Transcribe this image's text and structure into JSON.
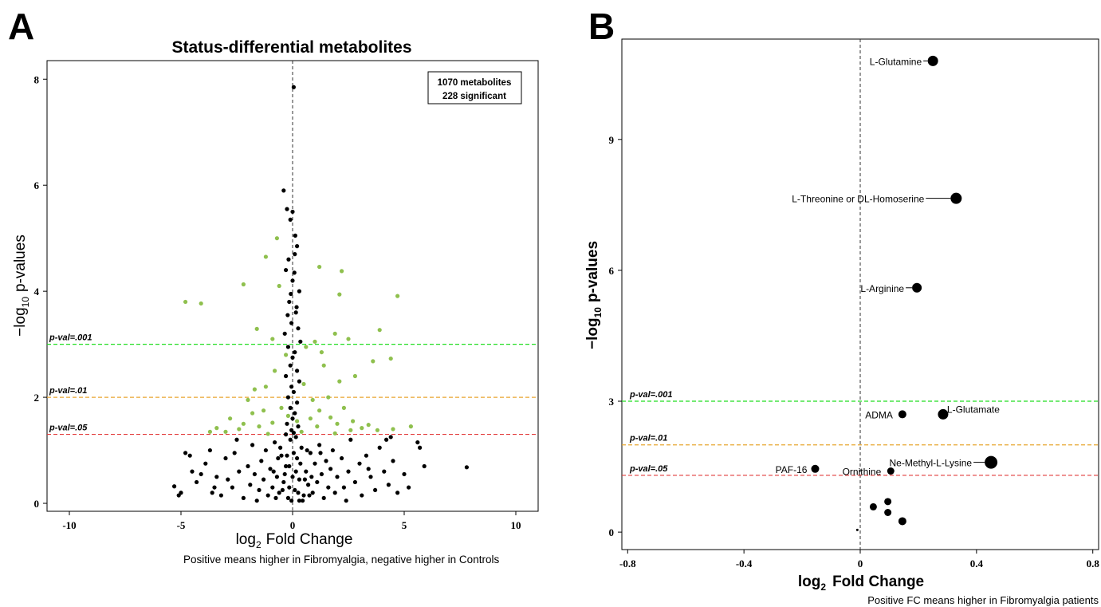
{
  "panels": {
    "a_letter": "A",
    "b_letter": "B"
  },
  "notes": {
    "a": "Positive means higher in Fibromyalgia, negative higher in Controls",
    "b": "Positive FC means higher in Fibromyalgia patients"
  },
  "colors": {
    "nonsignificant": "#000000",
    "significant": "#8fc04e",
    "line_001": "#22dd22",
    "line_01": "#e8a630",
    "line_05": "#e23c3c"
  },
  "chart_data": [
    {
      "type": "scatter",
      "title": "Status-differential metabolites",
      "xlabel": {
        "main": "log",
        "sub": "2",
        "rest": "Fold Change"
      },
      "ylabel": {
        "main": "−log",
        "sub": "10",
        "rest": "p-values"
      },
      "xlim": [
        -11,
        11
      ],
      "ylim": [
        -0.15,
        8.35
      ],
      "xticks": [
        "-10",
        "-5",
        "0",
        "5",
        "10"
      ],
      "yticks": [
        "0",
        "2",
        "4",
        "6",
        "8"
      ],
      "legend": {
        "line1": "1070 metabolites",
        "line2": "228 significant",
        "position": "top-right"
      },
      "thresholds": [
        {
          "label": "p-val=.001",
          "y": 3.0,
          "color": "#22dd22"
        },
        {
          "label": "p-val=.01",
          "y": 2.0,
          "color": "#e8a630"
        },
        {
          "label": "p-val=.05",
          "y": 1.301,
          "color": "#e23c3c"
        }
      ],
      "points_significant": [
        [
          -4.8,
          3.8
        ],
        [
          -4.1,
          3.77
        ],
        [
          -2.2,
          4.13
        ],
        [
          -1.2,
          4.65
        ],
        [
          -0.7,
          5.0
        ],
        [
          -0.6,
          4.1
        ],
        [
          1.2,
          4.46
        ],
        [
          2.2,
          4.38
        ],
        [
          2.1,
          3.94
        ],
        [
          4.7,
          3.91
        ],
        [
          -1.6,
          3.29
        ],
        [
          3.9,
          3.27
        ],
        [
          4.4,
          2.73
        ],
        [
          3.6,
          2.68
        ],
        [
          2.8,
          2.4
        ],
        [
          1.9,
          3.2
        ],
        [
          1.0,
          3.05
        ],
        [
          -0.9,
          3.1
        ],
        [
          0.6,
          2.95
        ],
        [
          2.5,
          3.1
        ],
        [
          -0.3,
          2.8
        ],
        [
          1.4,
          2.6
        ],
        [
          2.1,
          2.3
        ],
        [
          -1.2,
          2.2
        ],
        [
          -1.7,
          2.15
        ],
        [
          0.5,
          2.25
        ],
        [
          1.6,
          2.0
        ],
        [
          2.3,
          1.8
        ],
        [
          -2.0,
          1.95
        ],
        [
          -0.5,
          1.8
        ],
        [
          0.8,
          1.6
        ],
        [
          -1.3,
          1.75
        ],
        [
          1.1,
          1.45
        ],
        [
          -0.9,
          1.52
        ],
        [
          -1.8,
          1.7
        ],
        [
          2.7,
          1.55
        ],
        [
          3.4,
          1.48
        ],
        [
          -2.8,
          1.6
        ],
        [
          -3.4,
          1.42
        ],
        [
          -3.7,
          1.35
        ],
        [
          -2.4,
          1.4
        ],
        [
          -1.1,
          1.31
        ],
        [
          0.4,
          1.35
        ],
        [
          1.9,
          1.32
        ],
        [
          2.6,
          1.38
        ],
        [
          3.8,
          1.38
        ],
        [
          4.5,
          1.4
        ],
        [
          5.3,
          1.45
        ],
        [
          -3.0,
          1.35
        ],
        [
          1.2,
          1.75
        ],
        [
          -0.2,
          1.65
        ],
        [
          0.2,
          1.55
        ],
        [
          1.7,
          1.62
        ],
        [
          -1.5,
          1.45
        ],
        [
          2.0,
          1.5
        ],
        [
          3.1,
          1.42
        ],
        [
          -2.2,
          1.5
        ],
        [
          0.9,
          1.95
        ],
        [
          -0.8,
          2.5
        ],
        [
          1.3,
          2.85
        ]
      ],
      "points_nonsignificant": [
        [
          0.05,
          7.85
        ],
        [
          -0.4,
          5.9
        ],
        [
          -0.25,
          5.55
        ],
        [
          -0.1,
          5.35
        ],
        [
          0.2,
          4.85
        ],
        [
          0.1,
          4.7
        ],
        [
          -0.3,
          4.4
        ],
        [
          0.0,
          4.2
        ],
        [
          0.3,
          4.0
        ],
        [
          -0.15,
          3.8
        ],
        [
          0.15,
          3.6
        ],
        [
          -0.05,
          3.4
        ],
        [
          0.25,
          3.3
        ],
        [
          -0.35,
          3.2
        ],
        [
          0.35,
          3.05
        ],
        [
          -0.2,
          2.95
        ],
        [
          0.1,
          2.85
        ],
        [
          0.0,
          2.75
        ],
        [
          -0.1,
          2.6
        ],
        [
          0.2,
          2.5
        ],
        [
          -0.3,
          2.4
        ],
        [
          0.3,
          2.3
        ],
        [
          -0.05,
          2.2
        ],
        [
          0.05,
          2.1
        ],
        [
          -0.2,
          2.0
        ],
        [
          0.2,
          1.9
        ],
        [
          -0.1,
          1.8
        ],
        [
          0.1,
          1.7
        ],
        [
          0.0,
          1.6
        ],
        [
          -0.25,
          1.5
        ],
        [
          0.25,
          1.45
        ],
        [
          -0.05,
          1.38
        ],
        [
          0.05,
          1.33
        ],
        [
          0.0,
          5.5
        ],
        [
          0.12,
          5.05
        ],
        [
          -0.18,
          4.6
        ],
        [
          0.08,
          4.35
        ],
        [
          -0.08,
          3.95
        ],
        [
          0.18,
          3.7
        ],
        [
          -0.22,
          3.55
        ],
        [
          -5.3,
          0.32
        ],
        [
          -5.0,
          0.2
        ],
        [
          -4.8,
          0.95
        ],
        [
          -4.6,
          0.9
        ],
        [
          -4.5,
          0.6
        ],
        [
          -4.3,
          0.4
        ],
        [
          -4.1,
          0.55
        ],
        [
          -3.9,
          0.75
        ],
        [
          -3.7,
          1.0
        ],
        [
          -3.5,
          0.3
        ],
        [
          -3.4,
          0.5
        ],
        [
          -3.2,
          0.15
        ],
        [
          -3.0,
          0.85
        ],
        [
          -2.9,
          0.45
        ],
        [
          -2.7,
          0.3
        ],
        [
          -2.5,
          1.2
        ],
        [
          -2.4,
          0.6
        ],
        [
          -2.2,
          0.1
        ],
        [
          -2.0,
          0.7
        ],
        [
          -1.9,
          0.35
        ],
        [
          -1.8,
          1.1
        ],
        [
          -1.7,
          0.55
        ],
        [
          -1.5,
          0.25
        ],
        [
          -1.4,
          0.8
        ],
        [
          -1.3,
          0.45
        ],
        [
          -1.2,
          1.0
        ],
        [
          -1.1,
          0.15
        ],
        [
          -1.0,
          0.65
        ],
        [
          -0.9,
          0.3
        ],
        [
          -0.8,
          1.15
        ],
        [
          -0.7,
          0.5
        ],
        [
          -0.6,
          0.2
        ],
        [
          -0.5,
          0.9
        ],
        [
          -0.4,
          0.4
        ],
        [
          -0.3,
          0.7
        ],
        [
          -0.2,
          0.1
        ],
        [
          -0.1,
          1.2
        ],
        [
          0.0,
          0.5
        ],
        [
          0.1,
          0.25
        ],
        [
          0.2,
          0.85
        ],
        [
          0.3,
          0.45
        ],
        [
          0.4,
          1.05
        ],
        [
          0.5,
          0.15
        ],
        [
          0.6,
          0.6
        ],
        [
          0.7,
          0.35
        ],
        [
          0.8,
          0.95
        ],
        [
          0.9,
          0.2
        ],
        [
          1.0,
          0.75
        ],
        [
          1.1,
          0.4
        ],
        [
          1.2,
          1.1
        ],
        [
          1.3,
          0.55
        ],
        [
          1.4,
          0.1
        ],
        [
          1.5,
          0.8
        ],
        [
          1.6,
          0.3
        ],
        [
          1.7,
          0.65
        ],
        [
          1.8,
          1.0
        ],
        [
          1.9,
          0.2
        ],
        [
          2.0,
          0.5
        ],
        [
          2.2,
          0.85
        ],
        [
          2.3,
          0.3
        ],
        [
          2.5,
          0.6
        ],
        [
          2.6,
          1.2
        ],
        [
          2.8,
          0.4
        ],
        [
          3.0,
          0.75
        ],
        [
          3.1,
          0.15
        ],
        [
          3.3,
          0.9
        ],
        [
          3.5,
          0.5
        ],
        [
          3.7,
          0.25
        ],
        [
          3.9,
          1.05
        ],
        [
          4.1,
          0.6
        ],
        [
          4.3,
          0.35
        ],
        [
          4.5,
          0.8
        ],
        [
          4.7,
          0.2
        ],
        [
          5.0,
          0.55
        ],
        [
          5.2,
          0.3
        ],
        [
          5.6,
          1.15
        ],
        [
          5.7,
          1.05
        ],
        [
          5.9,
          0.7
        ],
        [
          7.8,
          0.68
        ],
        [
          4.2,
          1.2
        ],
        [
          -5.1,
          0.15
        ],
        [
          -3.6,
          0.2
        ],
        [
          -2.6,
          0.95
        ],
        [
          -1.6,
          0.05
        ],
        [
          -0.55,
          1.05
        ],
        [
          0.45,
          0.05
        ],
        [
          1.25,
          0.95
        ],
        [
          2.4,
          0.05
        ],
        [
          3.4,
          0.65
        ],
        [
          4.4,
          1.25
        ],
        [
          -0.15,
          0.3
        ],
        [
          0.15,
          0.6
        ],
        [
          -0.25,
          0.9
        ],
        [
          0.25,
          0.2
        ],
        [
          -0.35,
          0.55
        ],
        [
          0.35,
          0.75
        ],
        [
          -0.45,
          0.25
        ],
        [
          0.55,
          0.45
        ],
        [
          -0.65,
          0.85
        ],
        [
          0.65,
          1.0
        ],
        [
          -0.05,
          0.05
        ],
        [
          0.05,
          0.95
        ],
        [
          -0.15,
          0.7
        ],
        [
          0.15,
          1.25
        ],
        [
          -0.3,
          1.3
        ],
        [
          0.3,
          0.05
        ],
        [
          -0.75,
          0.1
        ],
        [
          0.75,
          0.15
        ],
        [
          -0.85,
          0.6
        ],
        [
          0.85,
          0.5
        ]
      ]
    },
    {
      "type": "scatter",
      "title": "",
      "xlabel": {
        "main": "log",
        "sub": "2",
        "rest": "Fold Change"
      },
      "ylabel": {
        "main": "−log",
        "sub": "10",
        "rest": "p-values"
      },
      "xlim": [
        -0.82,
        0.82
      ],
      "ylim": [
        -0.4,
        11.3
      ],
      "xticks": [
        "-0.8",
        "-0.4",
        "0",
        "0.4",
        "0.8"
      ],
      "xtick_values": [
        -0.8,
        -0.4,
        0,
        0.4,
        0.8
      ],
      "yticks": [
        "0",
        "3",
        "6",
        "9"
      ],
      "ytick_values": [
        0,
        3,
        6,
        9
      ],
      "thresholds": [
        {
          "label": "p-val=.001",
          "y": 3.0,
          "color": "#22dd22"
        },
        {
          "label": "p-val=.01",
          "y": 2.0,
          "color": "#e8a630"
        },
        {
          "label": "p-val=.05",
          "y": 1.301,
          "color": "#e23c3c"
        }
      ],
      "points": [
        {
          "x": 0.25,
          "y": 10.8,
          "size": 6.5,
          "label": "L-Glutamine"
        },
        {
          "x": 0.33,
          "y": 7.65,
          "size": 7,
          "label": "L-Threonine or DL-Homoserine"
        },
        {
          "x": 0.195,
          "y": 5.6,
          "size": 6,
          "label": "L-Arginine"
        },
        {
          "x": 0.285,
          "y": 2.7,
          "size": 6.5,
          "label": "L-Glutamate"
        },
        {
          "x": 0.145,
          "y": 2.7,
          "size": 5,
          "label": "ADMA"
        },
        {
          "x": 0.45,
          "y": 1.6,
          "size": 8,
          "label": "Ne-Methyl-L-Lysine"
        },
        {
          "x": -0.155,
          "y": 1.45,
          "size": 5,
          "label": "PAF-16"
        },
        {
          "x": 0.105,
          "y": 1.4,
          "size": 4.5,
          "label": "Ornithine"
        },
        {
          "x": 0.095,
          "y": 0.7,
          "size": 4.5,
          "label": ""
        },
        {
          "x": 0.045,
          "y": 0.58,
          "size": 4.5,
          "label": ""
        },
        {
          "x": 0.095,
          "y": 0.45,
          "size": 4.5,
          "label": ""
        },
        {
          "x": 0.145,
          "y": 0.25,
          "size": 5,
          "label": ""
        },
        {
          "x": -0.01,
          "y": 0.05,
          "size": 1.5,
          "label": ""
        }
      ]
    }
  ]
}
